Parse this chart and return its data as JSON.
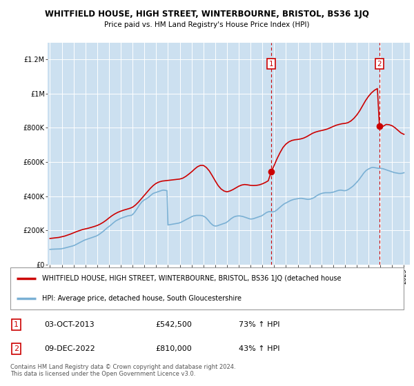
{
  "title": "WHITFIELD HOUSE, HIGH STREET, WINTERBOURNE, BRISTOL, BS36 1JQ",
  "subtitle": "Price paid vs. HM Land Registry's House Price Index (HPI)",
  "legend_line1": "WHITFIELD HOUSE, HIGH STREET, WINTERBOURNE, BRISTOL, BS36 1JQ (detached house",
  "legend_line2": "HPI: Average price, detached house, South Gloucestershire",
  "footnote": "Contains HM Land Registry data © Crown copyright and database right 2024.\nThis data is licensed under the Open Government Licence v3.0.",
  "sale1_date": "03-OCT-2013",
  "sale1_price": 542500,
  "sale1_label": "73% ↑ HPI",
  "sale2_date": "09-DEC-2022",
  "sale2_price": 810000,
  "sale2_label": "43% ↑ HPI",
  "sale1_x": 2013.75,
  "sale2_x": 2022.92,
  "red_color": "#cc0000",
  "blue_color": "#7ab0d4",
  "plot_bg_color": "#cce0f0",
  "ylim": [
    0,
    1300000
  ],
  "yticks": [
    0,
    200000,
    400000,
    600000,
    800000,
    1000000,
    1200000
  ],
  "ytick_labels": [
    "£0",
    "£200K",
    "£400K",
    "£600K",
    "£800K",
    "£1M",
    "£1.2M"
  ],
  "hpi_x": [
    1995.0,
    1995.08,
    1995.17,
    1995.25,
    1995.33,
    1995.42,
    1995.5,
    1995.58,
    1995.67,
    1995.75,
    1995.83,
    1995.92,
    1996.0,
    1996.08,
    1996.17,
    1996.25,
    1996.33,
    1996.42,
    1996.5,
    1996.58,
    1996.67,
    1996.75,
    1996.83,
    1996.92,
    1997.0,
    1997.08,
    1997.17,
    1997.25,
    1997.33,
    1997.42,
    1997.5,
    1997.58,
    1997.67,
    1997.75,
    1997.83,
    1997.92,
    1998.0,
    1998.08,
    1998.17,
    1998.25,
    1998.33,
    1998.42,
    1998.5,
    1998.58,
    1998.67,
    1998.75,
    1998.83,
    1998.92,
    1999.0,
    1999.08,
    1999.17,
    1999.25,
    1999.33,
    1999.42,
    1999.5,
    1999.58,
    1999.67,
    1999.75,
    1999.83,
    1999.92,
    2000.0,
    2000.08,
    2000.17,
    2000.25,
    2000.33,
    2000.42,
    2000.5,
    2000.58,
    2000.67,
    2000.75,
    2000.83,
    2000.92,
    2001.0,
    2001.08,
    2001.17,
    2001.25,
    2001.33,
    2001.42,
    2001.5,
    2001.58,
    2001.67,
    2001.75,
    2001.83,
    2001.92,
    2002.0,
    2002.08,
    2002.17,
    2002.25,
    2002.33,
    2002.42,
    2002.5,
    2002.58,
    2002.67,
    2002.75,
    2002.83,
    2002.92,
    2003.0,
    2003.08,
    2003.17,
    2003.25,
    2003.33,
    2003.42,
    2003.5,
    2003.58,
    2003.67,
    2003.75,
    2003.83,
    2003.92,
    2004.0,
    2004.08,
    2004.17,
    2004.25,
    2004.33,
    2004.42,
    2004.5,
    2004.58,
    2004.67,
    2004.75,
    2004.83,
    2004.92,
    2005.0,
    2005.08,
    2005.17,
    2005.25,
    2005.33,
    2005.42,
    2005.5,
    2005.58,
    2005.67,
    2005.75,
    2005.83,
    2005.92,
    2006.0,
    2006.08,
    2006.17,
    2006.25,
    2006.33,
    2006.42,
    2006.5,
    2006.58,
    2006.67,
    2006.75,
    2006.83,
    2006.92,
    2007.0,
    2007.08,
    2007.17,
    2007.25,
    2007.33,
    2007.42,
    2007.5,
    2007.58,
    2007.67,
    2007.75,
    2007.83,
    2007.92,
    2008.0,
    2008.08,
    2008.17,
    2008.25,
    2008.33,
    2008.42,
    2008.5,
    2008.58,
    2008.67,
    2008.75,
    2008.83,
    2008.92,
    2009.0,
    2009.08,
    2009.17,
    2009.25,
    2009.33,
    2009.42,
    2009.5,
    2009.58,
    2009.67,
    2009.75,
    2009.83,
    2009.92,
    2010.0,
    2010.08,
    2010.17,
    2010.25,
    2010.33,
    2010.42,
    2010.5,
    2010.58,
    2010.67,
    2010.75,
    2010.83,
    2010.92,
    2011.0,
    2011.08,
    2011.17,
    2011.25,
    2011.33,
    2011.42,
    2011.5,
    2011.58,
    2011.67,
    2011.75,
    2011.83,
    2011.92,
    2012.0,
    2012.08,
    2012.17,
    2012.25,
    2012.33,
    2012.42,
    2012.5,
    2012.58,
    2012.67,
    2012.75,
    2012.83,
    2012.92,
    2013.0,
    2013.08,
    2013.17,
    2013.25,
    2013.33,
    2013.42,
    2013.5,
    2013.58,
    2013.67,
    2013.75,
    2013.83,
    2013.92,
    2014.0,
    2014.08,
    2014.17,
    2014.25,
    2014.33,
    2014.42,
    2014.5,
    2014.58,
    2014.67,
    2014.75,
    2014.83,
    2014.92,
    2015.0,
    2015.08,
    2015.17,
    2015.25,
    2015.33,
    2015.42,
    2015.5,
    2015.58,
    2015.67,
    2015.75,
    2015.83,
    2015.92,
    2016.0,
    2016.08,
    2016.17,
    2016.25,
    2016.33,
    2016.42,
    2016.5,
    2016.58,
    2016.67,
    2016.75,
    2016.83,
    2016.92,
    2017.0,
    2017.08,
    2017.17,
    2017.25,
    2017.33,
    2017.42,
    2017.5,
    2017.58,
    2017.67,
    2017.75,
    2017.83,
    2017.92,
    2018.0,
    2018.08,
    2018.17,
    2018.25,
    2018.33,
    2018.42,
    2018.5,
    2018.58,
    2018.67,
    2018.75,
    2018.83,
    2018.92,
    2019.0,
    2019.08,
    2019.17,
    2019.25,
    2019.33,
    2019.42,
    2019.5,
    2019.58,
    2019.67,
    2019.75,
    2019.83,
    2019.92,
    2020.0,
    2020.08,
    2020.17,
    2020.25,
    2020.33,
    2020.42,
    2020.5,
    2020.58,
    2020.67,
    2020.75,
    2020.83,
    2020.92,
    2021.0,
    2021.08,
    2021.17,
    2021.25,
    2021.33,
    2021.42,
    2021.5,
    2021.58,
    2021.67,
    2021.75,
    2021.83,
    2021.92,
    2022.0,
    2022.08,
    2022.17,
    2022.25,
    2022.33,
    2022.42,
    2022.5,
    2022.58,
    2022.67,
    2022.75,
    2022.83,
    2022.92,
    2023.0,
    2023.08,
    2023.17,
    2023.25,
    2023.33,
    2023.42,
    2023.5,
    2023.58,
    2023.67,
    2023.75,
    2023.83,
    2023.92,
    2024.0,
    2024.08,
    2024.17,
    2024.25,
    2024.33,
    2024.42,
    2024.5,
    2024.58,
    2024.67,
    2024.75,
    2024.83,
    2024.92,
    2025.0
  ],
  "hpi_y": [
    88000,
    88500,
    89000,
    89200,
    89400,
    89600,
    89800,
    90000,
    90200,
    90400,
    90600,
    91000,
    92000,
    93000,
    94500,
    96000,
    97500,
    99000,
    100500,
    102000,
    103500,
    105000,
    106500,
    108000,
    110000,
    112000,
    115000,
    118000,
    121000,
    124000,
    127000,
    130000,
    133000,
    136000,
    139000,
    142000,
    144000,
    146000,
    148000,
    150000,
    152000,
    154000,
    156000,
    158000,
    160000,
    162000,
    164000,
    166000,
    169000,
    172000,
    176000,
    180000,
    184000,
    188000,
    193000,
    198000,
    203000,
    208000,
    213000,
    218000,
    222000,
    226000,
    231000,
    236000,
    241000,
    246000,
    251000,
    255000,
    258000,
    261000,
    264000,
    267000,
    270000,
    272000,
    274000,
    276000,
    278000,
    280000,
    282000,
    284000,
    285000,
    286000,
    287000,
    288000,
    292000,
    298000,
    305000,
    313000,
    321000,
    330000,
    339000,
    348000,
    356000,
    363000,
    369000,
    374000,
    378000,
    381000,
    384000,
    388000,
    392000,
    397000,
    402000,
    407000,
    412000,
    416000,
    418000,
    420000,
    422000,
    424000,
    426000,
    428000,
    430000,
    432000,
    434000,
    435000,
    435000,
    434000,
    433000,
    432000,
    231000,
    232000,
    233000,
    234000,
    235000,
    236000,
    237000,
    238000,
    239000,
    240000,
    241000,
    242000,
    244000,
    246000,
    249000,
    252000,
    255000,
    258000,
    261000,
    264000,
    267000,
    270000,
    273000,
    276000,
    279000,
    282000,
    284000,
    285000,
    286000,
    287000,
    287000,
    287000,
    287000,
    287000,
    286000,
    285000,
    283000,
    280000,
    276000,
    271000,
    265000,
    258000,
    251000,
    244000,
    238000,
    233000,
    229000,
    226000,
    225000,
    225000,
    226000,
    228000,
    230000,
    232000,
    234000,
    236000,
    238000,
    240000,
    242000,
    244000,
    248000,
    252000,
    257000,
    262000,
    267000,
    271000,
    275000,
    278000,
    280000,
    282000,
    283000,
    284000,
    284000,
    284000,
    283000,
    282000,
    281000,
    279000,
    277000,
    275000,
    273000,
    271000,
    269000,
    267000,
    266000,
    266000,
    267000,
    268000,
    270000,
    272000,
    274000,
    276000,
    278000,
    280000,
    282000,
    284000,
    287000,
    291000,
    295000,
    299000,
    303000,
    306000,
    308000,
    309000,
    309000,
    308000,
    308000,
    308000,
    309000,
    312000,
    316000,
    320000,
    325000,
    330000,
    335000,
    340000,
    345000,
    350000,
    354000,
    357000,
    360000,
    363000,
    366000,
    369000,
    372000,
    375000,
    377000,
    379000,
    381000,
    382000,
    383000,
    384000,
    385000,
    386000,
    387000,
    387000,
    387000,
    386000,
    385000,
    384000,
    383000,
    382000,
    381000,
    381000,
    382000,
    383000,
    385000,
    387000,
    390000,
    393000,
    397000,
    401000,
    405000,
    408000,
    411000,
    413000,
    415000,
    417000,
    418000,
    419000,
    420000,
    420000,
    420000,
    420000,
    420000,
    420000,
    421000,
    422000,
    423000,
    425000,
    427000,
    429000,
    431000,
    433000,
    434000,
    435000,
    435000,
    434000,
    433000,
    432000,
    432000,
    433000,
    435000,
    438000,
    441000,
    445000,
    449000,
    453000,
    458000,
    463000,
    469000,
    475000,
    481000,
    488000,
    495000,
    502000,
    510000,
    518000,
    526000,
    534000,
    541000,
    547000,
    552000,
    556000,
    559000,
    562000,
    565000,
    567000,
    568000,
    568000,
    567000,
    566000,
    565000,
    564000,
    563000,
    563000,
    563000,
    562000,
    561000,
    560000,
    558000,
    556000,
    554000,
    552000,
    550000,
    548000,
    546000,
    544000,
    542000,
    540000,
    538000,
    537000,
    536000,
    535000,
    534000,
    533000,
    533000,
    533000,
    534000,
    535000,
    537000
  ],
  "red_x": [
    1995.0,
    1995.25,
    1995.5,
    1995.75,
    1996.0,
    1996.25,
    1996.5,
    1996.75,
    1997.0,
    1997.25,
    1997.5,
    1997.75,
    1998.0,
    1998.25,
    1998.5,
    1998.75,
    1999.0,
    1999.25,
    1999.5,
    1999.75,
    2000.0,
    2000.25,
    2000.5,
    2000.75,
    2001.0,
    2001.25,
    2001.5,
    2001.75,
    2002.0,
    2002.25,
    2002.5,
    2002.75,
    2003.0,
    2003.25,
    2003.5,
    2003.75,
    2004.0,
    2004.25,
    2004.5,
    2004.75,
    2005.0,
    2005.25,
    2005.5,
    2005.75,
    2006.0,
    2006.25,
    2006.5,
    2006.75,
    2007.0,
    2007.25,
    2007.5,
    2007.75,
    2008.0,
    2008.25,
    2008.5,
    2008.75,
    2009.0,
    2009.25,
    2009.5,
    2009.75,
    2010.0,
    2010.25,
    2010.5,
    2010.75,
    2011.0,
    2011.25,
    2011.5,
    2011.75,
    2012.0,
    2012.25,
    2012.5,
    2012.75,
    2013.0,
    2013.25,
    2013.5,
    2013.75,
    2014.0,
    2014.25,
    2014.5,
    2014.75,
    2015.0,
    2015.25,
    2015.5,
    2015.75,
    2016.0,
    2016.25,
    2016.5,
    2016.75,
    2017.0,
    2017.25,
    2017.5,
    2017.75,
    2018.0,
    2018.25,
    2018.5,
    2018.75,
    2019.0,
    2019.25,
    2019.5,
    2019.75,
    2020.0,
    2020.25,
    2020.5,
    2020.75,
    2021.0,
    2021.25,
    2021.5,
    2021.75,
    2022.0,
    2022.25,
    2022.5,
    2022.75,
    2022.92,
    2023.0,
    2023.25,
    2023.5,
    2023.75,
    2024.0,
    2024.25,
    2024.5,
    2024.75,
    2025.0
  ],
  "red_y": [
    152000,
    154000,
    156000,
    158000,
    162000,
    166000,
    172000,
    178000,
    185000,
    192000,
    198000,
    204000,
    208000,
    212000,
    217000,
    222000,
    228000,
    236000,
    246000,
    258000,
    272000,
    285000,
    296000,
    305000,
    312000,
    318000,
    323000,
    328000,
    335000,
    348000,
    365000,
    385000,
    405000,
    425000,
    445000,
    462000,
    475000,
    483000,
    488000,
    490000,
    492000,
    494000,
    496000,
    498000,
    500000,
    505000,
    515000,
    528000,
    542000,
    558000,
    572000,
    580000,
    580000,
    568000,
    548000,
    520000,
    490000,
    462000,
    442000,
    430000,
    425000,
    430000,
    438000,
    448000,
    458000,
    465000,
    468000,
    466000,
    463000,
    462000,
    463000,
    466000,
    472000,
    480000,
    490000,
    542500,
    580000,
    620000,
    655000,
    685000,
    705000,
    718000,
    726000,
    730000,
    732000,
    735000,
    740000,
    748000,
    758000,
    768000,
    775000,
    780000,
    784000,
    788000,
    793000,
    800000,
    808000,
    815000,
    820000,
    824000,
    826000,
    830000,
    840000,
    855000,
    875000,
    900000,
    930000,
    960000,
    985000,
    1005000,
    1020000,
    1030000,
    810000,
    800000,
    810000,
    820000,
    818000,
    812000,
    800000,
    785000,
    770000,
    762000
  ]
}
